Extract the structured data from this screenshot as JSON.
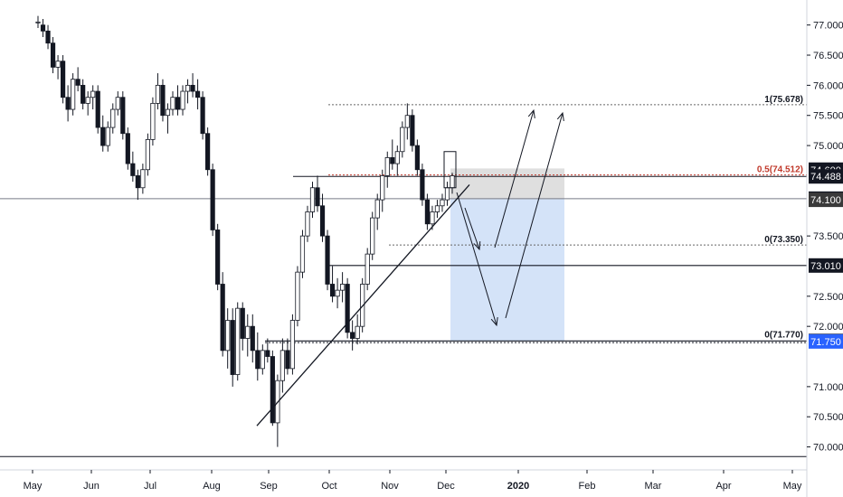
{
  "chart_data": {
    "type": "candlestick",
    "x_axis": {
      "labels": [
        "May",
        "Jun",
        "Jul",
        "Aug",
        "Sep",
        "Oct",
        "Nov",
        "Dec",
        "2020",
        "Feb",
        "Mar",
        "Apr",
        "May"
      ],
      "bold_labels": [
        "2020"
      ]
    },
    "y_axis": {
      "ticks": [
        "77.000",
        "76.500",
        "76.000",
        "75.500",
        "75.000",
        "73.500",
        "72.500",
        "72.000",
        "71.000",
        "70.500",
        "70.000"
      ],
      "range": [
        69.75,
        77.25
      ]
    },
    "price_badges": [
      {
        "value": 74.6,
        "label": "74.600",
        "color": "#131722"
      },
      {
        "value": 74.488,
        "label": "74.488",
        "color": "#131722"
      },
      {
        "value": 74.119,
        "label": "74.119",
        "color": "#131722"
      },
      {
        "value": 74.1,
        "label": "74.100",
        "color": "#3a3a3a"
      },
      {
        "value": 73.01,
        "label": "73.010",
        "color": "#131722"
      },
      {
        "value": 71.758,
        "label": "71.758",
        "color": "#131722"
      },
      {
        "value": 71.75,
        "label": "71.750",
        "color": "#2962ff"
      }
    ],
    "annotations": [
      {
        "value": 75.678,
        "label": "1(75.678)",
        "color": "#131722"
      },
      {
        "value": 74.512,
        "label": "0.5(74.512)",
        "color": "#c0392b"
      },
      {
        "value": 73.35,
        "label": "0(73.350)",
        "color": "#131722"
      },
      {
        "value": 71.77,
        "label": "0(71.770)",
        "color": "#131722"
      }
    ],
    "horizontal_levels": [
      74.488,
      74.119,
      73.01,
      71.758,
      69.84
    ],
    "candles": [
      [
        77.05,
        77.15,
        76.95,
        77.05
      ],
      [
        77.0,
        77.1,
        76.8,
        76.9
      ],
      [
        76.9,
        77.0,
        76.6,
        76.7
      ],
      [
        76.7,
        76.8,
        76.2,
        76.3
      ],
      [
        76.3,
        76.5,
        76.1,
        76.4
      ],
      [
        76.4,
        76.5,
        75.7,
        75.8
      ],
      [
        75.8,
        76.0,
        75.4,
        75.6
      ],
      [
        75.6,
        76.2,
        75.5,
        76.1
      ],
      [
        76.1,
        76.3,
        75.9,
        76.0
      ],
      [
        76.0,
        76.1,
        75.6,
        75.7
      ],
      [
        75.7,
        75.9,
        75.5,
        75.8
      ],
      [
        75.8,
        76.0,
        75.6,
        75.9
      ],
      [
        75.9,
        76.0,
        75.2,
        75.3
      ],
      [
        75.3,
        75.5,
        74.9,
        75.0
      ],
      [
        75.0,
        75.4,
        74.9,
        75.3
      ],
      [
        75.3,
        75.7,
        75.2,
        75.6
      ],
      [
        75.6,
        75.9,
        75.5,
        75.8
      ],
      [
        75.8,
        75.9,
        75.1,
        75.2
      ],
      [
        75.2,
        75.3,
        74.6,
        74.7
      ],
      [
        74.7,
        74.9,
        74.4,
        74.5
      ],
      [
        74.5,
        74.6,
        74.1,
        74.3
      ],
      [
        74.3,
        74.7,
        74.2,
        74.6
      ],
      [
        74.6,
        75.2,
        74.5,
        75.1
      ],
      [
        75.1,
        75.8,
        75.0,
        75.7
      ],
      [
        75.7,
        76.2,
        75.6,
        76.0
      ],
      [
        76.0,
        76.1,
        75.4,
        75.5
      ],
      [
        75.5,
        75.7,
        75.2,
        75.6
      ],
      [
        75.6,
        75.9,
        75.5,
        75.8
      ],
      [
        75.8,
        76.0,
        75.5,
        75.6
      ],
      [
        75.6,
        76.0,
        75.5,
        75.9
      ],
      [
        75.9,
        76.1,
        75.7,
        76.0
      ],
      [
        76.0,
        76.2,
        75.8,
        75.9
      ],
      [
        75.9,
        76.1,
        75.6,
        75.8
      ],
      [
        75.8,
        75.9,
        75.1,
        75.2
      ],
      [
        75.2,
        75.3,
        74.5,
        74.6
      ],
      [
        74.6,
        74.7,
        73.5,
        73.6
      ],
      [
        73.6,
        73.7,
        72.6,
        72.7
      ],
      [
        72.7,
        72.9,
        71.5,
        71.6
      ],
      [
        71.6,
        72.3,
        71.3,
        72.1
      ],
      [
        72.1,
        72.3,
        71.0,
        71.2
      ],
      [
        71.2,
        72.4,
        71.1,
        72.3
      ],
      [
        72.3,
        72.4,
        71.6,
        71.8
      ],
      [
        71.8,
        72.2,
        71.5,
        72.0
      ],
      [
        72.0,
        72.2,
        71.4,
        71.6
      ],
      [
        71.6,
        71.9,
        71.1,
        71.3
      ],
      [
        71.3,
        71.7,
        71.2,
        71.6
      ],
      [
        71.6,
        71.8,
        71.4,
        71.5
      ],
      [
        71.5,
        71.6,
        70.35,
        70.4
      ],
      [
        70.4,
        71.2,
        70.0,
        71.1
      ],
      [
        71.1,
        71.8,
        70.9,
        71.6
      ],
      [
        71.6,
        71.8,
        71.2,
        71.3
      ],
      [
        71.3,
        72.2,
        71.2,
        72.1
      ],
      [
        72.1,
        73.0,
        72.0,
        72.9
      ],
      [
        72.9,
        73.6,
        72.8,
        73.5
      ],
      [
        73.5,
        74.0,
        73.4,
        73.9
      ],
      [
        73.9,
        74.4,
        73.8,
        74.3
      ],
      [
        74.3,
        74.5,
        73.9,
        74.0
      ],
      [
        74.0,
        74.2,
        73.4,
        73.5
      ],
      [
        73.5,
        73.6,
        72.6,
        72.7
      ],
      [
        72.7,
        73.0,
        72.4,
        72.5
      ],
      [
        72.5,
        72.8,
        72.3,
        72.6
      ],
      [
        72.6,
        72.9,
        72.4,
        72.7
      ],
      [
        72.7,
        72.8,
        71.8,
        71.9
      ],
      [
        71.9,
        72.1,
        71.6,
        71.8
      ],
      [
        71.8,
        72.2,
        71.7,
        72.0
      ],
      [
        72.0,
        72.8,
        71.9,
        72.7
      ],
      [
        72.7,
        73.3,
        72.6,
        73.2
      ],
      [
        73.2,
        73.9,
        73.1,
        73.8
      ],
      [
        73.8,
        74.2,
        73.6,
        74.1
      ],
      [
        74.1,
        74.6,
        73.9,
        74.5
      ],
      [
        74.5,
        74.9,
        74.3,
        74.8
      ],
      [
        74.8,
        75.1,
        74.6,
        74.7
      ],
      [
        74.7,
        75.0,
        74.5,
        74.9
      ],
      [
        74.9,
        75.4,
        74.8,
        75.3
      ],
      [
        75.3,
        75.7,
        75.1,
        75.5
      ],
      [
        75.5,
        75.6,
        74.9,
        75.0
      ],
      [
        75.0,
        75.1,
        74.5,
        74.6
      ],
      [
        74.6,
        74.7,
        74.0,
        74.1
      ],
      [
        74.1,
        74.2,
        73.6,
        73.7
      ],
      [
        73.7,
        74.0,
        73.6,
        73.9
      ],
      [
        73.9,
        74.1,
        73.8,
        74.0
      ],
      [
        74.0,
        74.2,
        73.9,
        74.1
      ],
      [
        74.1,
        74.4,
        74.0,
        74.3
      ],
      [
        74.3,
        74.55,
        74.2,
        74.5
      ]
    ],
    "title": "",
    "xlabel": "",
    "ylabel": ""
  },
  "colors": {
    "up": "#ffffff",
    "down": "#131722",
    "wick": "#131722",
    "box_fill": "#d9d9d9",
    "projection_fill": "#cfe0f7",
    "blue_badge": "#2962ff"
  }
}
